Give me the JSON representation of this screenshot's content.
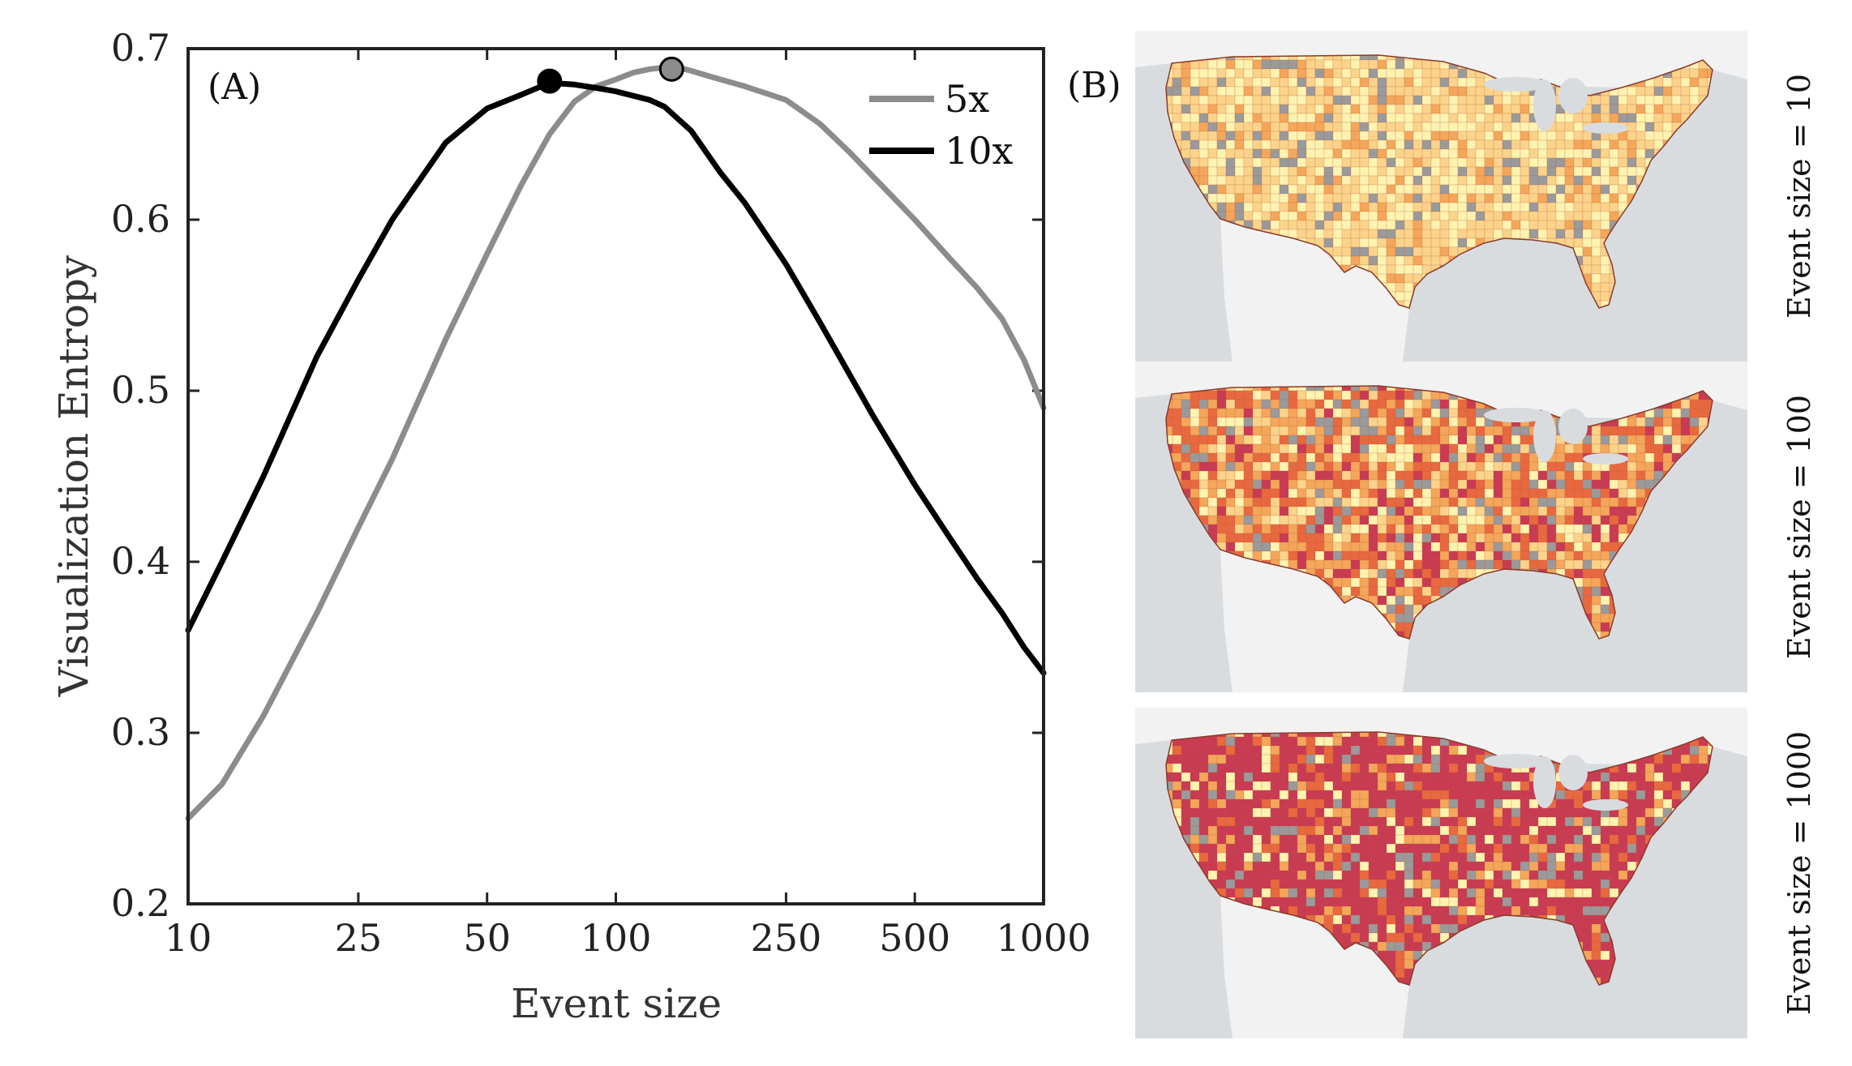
{
  "figure": {
    "panel_a_label": "(A)",
    "panel_b_label": "(B)"
  },
  "chart_data": {
    "type": "line",
    "xlabel": "Event size",
    "ylabel": "Visualization Entropy",
    "xscale": "log",
    "xlim": [
      10,
      1000
    ],
    "ylim": [
      0.2,
      0.7
    ],
    "x_ticks": [
      10,
      25,
      50,
      100,
      250,
      500,
      1000
    ],
    "x_tick_labels": [
      "10",
      "25",
      "50",
      "100",
      "250",
      "500",
      "1000"
    ],
    "y_ticks": [
      0.2,
      0.3,
      0.4,
      0.5,
      0.6,
      0.7
    ],
    "y_tick_labels": [
      "0.2",
      "0.3",
      "0.4",
      "0.5",
      "0.6",
      "0.7"
    ],
    "legend_position": "top-right",
    "series": [
      {
        "name": "5x",
        "color": "#8c8c8c",
        "x": [
          10,
          12,
          15,
          20,
          25,
          30,
          40,
          50,
          60,
          70,
          80,
          90,
          100,
          110,
          120,
          130,
          140,
          150,
          170,
          200,
          250,
          300,
          350,
          400,
          500,
          600,
          700,
          800,
          900,
          1000
        ],
        "y": [
          0.25,
          0.27,
          0.31,
          0.37,
          0.42,
          0.46,
          0.53,
          0.58,
          0.62,
          0.65,
          0.669,
          0.678,
          0.682,
          0.686,
          0.688,
          0.689,
          0.689,
          0.687,
          0.683,
          0.678,
          0.67,
          0.656,
          0.64,
          0.625,
          0.6,
          0.578,
          0.56,
          0.542,
          0.518,
          0.49
        ],
        "peak": {
          "x": 135,
          "y": 0.688
        }
      },
      {
        "name": "10x",
        "color": "#000000",
        "x": [
          10,
          12,
          15,
          20,
          25,
          30,
          40,
          50,
          60,
          70,
          80,
          90,
          100,
          120,
          130,
          150,
          175,
          200,
          250,
          300,
          400,
          500,
          600,
          700,
          800,
          900,
          1000
        ],
        "y": [
          0.36,
          0.4,
          0.45,
          0.52,
          0.565,
          0.6,
          0.645,
          0.665,
          0.673,
          0.68,
          0.679,
          0.677,
          0.675,
          0.67,
          0.666,
          0.652,
          0.628,
          0.61,
          0.574,
          0.54,
          0.485,
          0.445,
          0.415,
          0.39,
          0.37,
          0.35,
          0.335
        ],
        "peak": {
          "x": 70,
          "y": 0.681
        }
      }
    ]
  },
  "maps": [
    {
      "caption": "Event size = 10",
      "style": "light"
    },
    {
      "caption": "Event size = 100",
      "style": "medium"
    },
    {
      "caption": "Event size = 1000",
      "style": "dark"
    }
  ],
  "map_colors": {
    "sea": "#d9dcdf",
    "land_background": "#f2f2f2",
    "pale_yellow": "#fff3b0",
    "light_orange": "#fcd38a",
    "orange": "#f4a65a",
    "red_orange": "#e8693f",
    "crimson": "#c93b53",
    "no_data": "#9a9a9a"
  }
}
